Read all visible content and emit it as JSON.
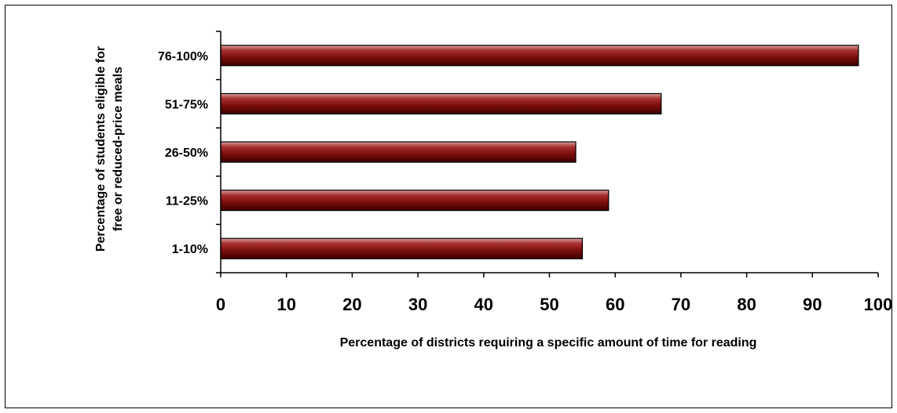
{
  "chart_data": {
    "type": "bar",
    "orientation": "horizontal",
    "categories": [
      "1-10%",
      "11-25%",
      "26-50%",
      "51-75%",
      "76-100%"
    ],
    "values": [
      55,
      59,
      54,
      67,
      97
    ],
    "xlabel": "Percentage of districts requiring a specific amount of time for reading",
    "ylabel": [
      "Percentage of students eligible for",
      "free or reduced-price meals"
    ],
    "xlim": [
      0,
      100
    ],
    "xticks": [
      "0",
      "10",
      "20",
      "30",
      "40",
      "50",
      "60",
      "70",
      "80",
      "90",
      "100"
    ],
    "grid": false,
    "legend": "none",
    "bar_color": "#800000"
  }
}
